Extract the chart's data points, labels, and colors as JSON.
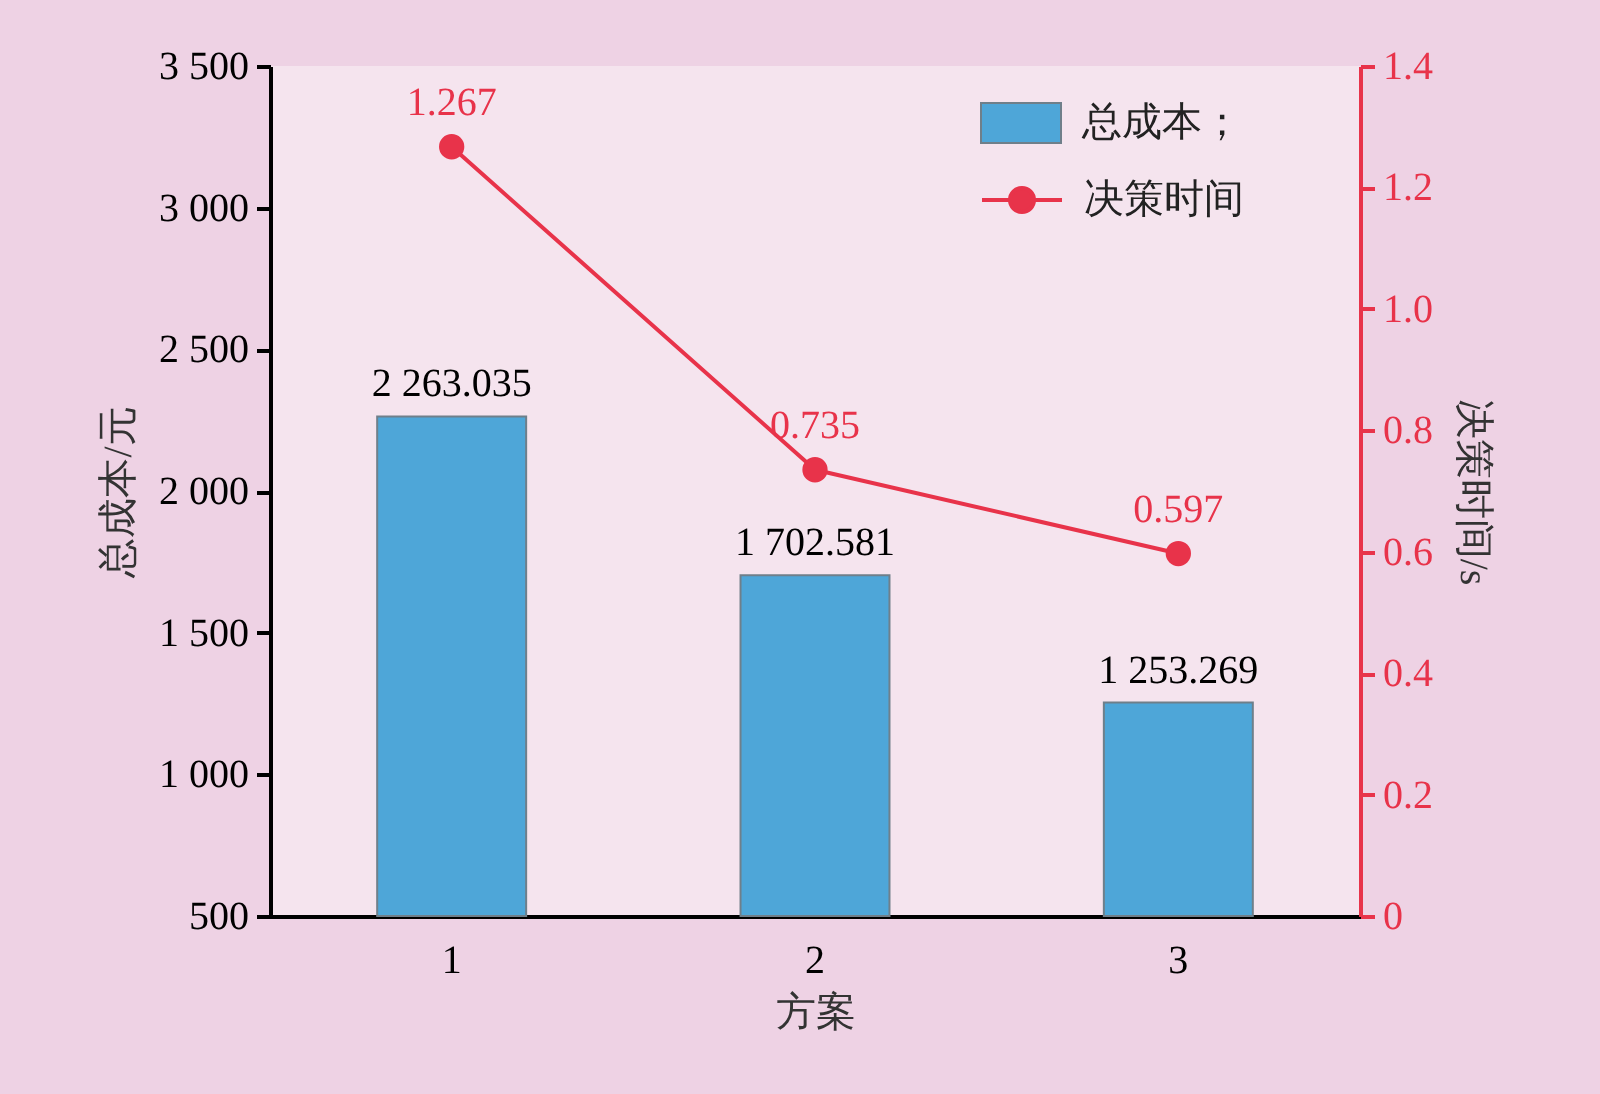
{
  "chart_data": {
    "type": "bar",
    "categories": [
      "1",
      "2",
      "3"
    ],
    "xlabel": "方案",
    "ylabel": "总成本/元",
    "y2label": "决策时间/s",
    "ylim": [
      500,
      3500
    ],
    "yticks": [
      500,
      {
        "value": 1000,
        "label": "1 000"
      },
      {
        "value": 1500,
        "label": "1 500"
      },
      {
        "value": 2000,
        "label": "2 000"
      },
      {
        "value": 2500,
        "label": "2 500"
      },
      {
        "value": 3000,
        "label": "3 000"
      },
      {
        "value": 3500,
        "label": "3 500"
      }
    ],
    "y2lim": [
      0,
      1.4
    ],
    "y2ticks": [
      0,
      0.2,
      0.4,
      0.6,
      0.8,
      {
        "value": 1,
        "label": "1.0"
      },
      1.2,
      1.4
    ],
    "series": [
      {
        "name": "总成本；",
        "color": "#4ea6d8",
        "values": [
          2263.035,
          1702.581,
          1253.269
        ],
        "value_labels": [
          "2 263.035",
          "1 702.581",
          "1 253.269"
        ]
      },
      {
        "name": "决策时间",
        "type": "line",
        "axis": "y2",
        "color": "#e8334a",
        "marker": "circle",
        "line_style": "solid",
        "values": [
          1.267,
          0.735,
          0.597
        ],
        "value_labels": [
          "1.267",
          "0.735",
          "0.597"
        ]
      }
    ],
    "legend": "top right",
    "grid": false
  }
}
